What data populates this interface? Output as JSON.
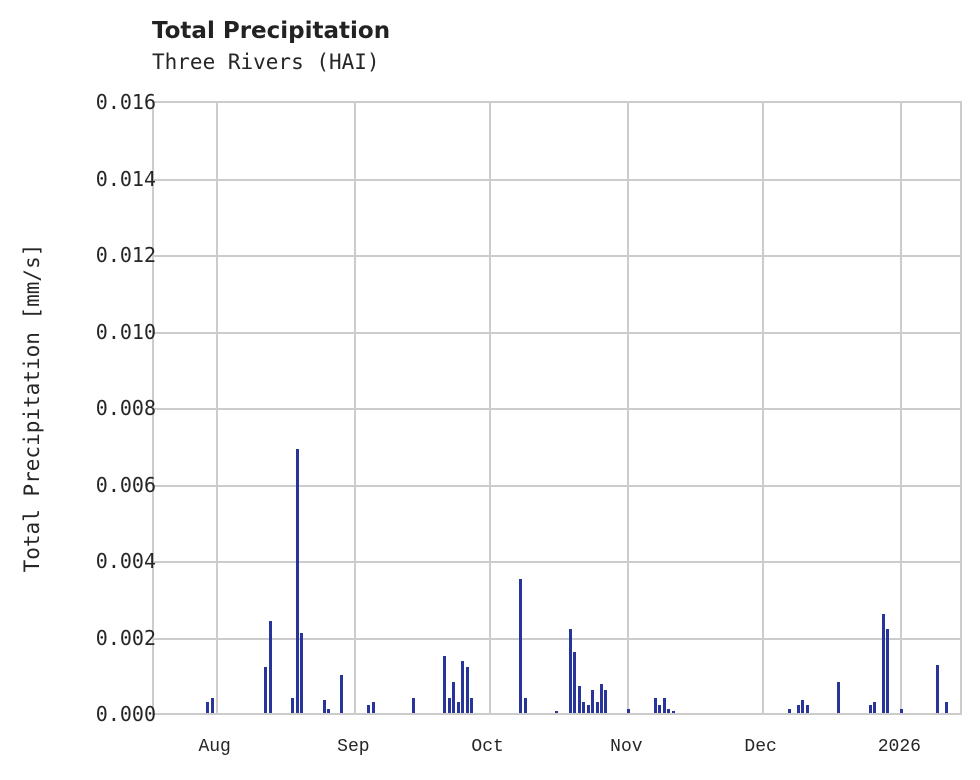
{
  "chart_data": {
    "type": "bar",
    "title": "Total Precipitation",
    "subtitle": "Three Rivers (HAI)",
    "xlabel": "",
    "ylabel": "Total Precipitation [mm/s]",
    "ylim": [
      0,
      0.016
    ],
    "xlim": [
      "2025-07-18",
      "2026-01-15"
    ],
    "grid": true,
    "legend": null,
    "color": "#27359a",
    "yticks": [
      "0.000",
      "0.002",
      "0.004",
      "0.006",
      "0.008",
      "0.010",
      "0.012",
      "0.014",
      "0.016"
    ],
    "xticks": [
      {
        "label": "Aug",
        "date": "2025-08-01"
      },
      {
        "label": "Sep",
        "date": "2025-09-01"
      },
      {
        "label": "Oct",
        "date": "2025-10-01"
      },
      {
        "label": "Nov",
        "date": "2025-11-01"
      },
      {
        "label": "Dec",
        "date": "2025-12-01"
      },
      {
        "label": "2026",
        "date": "2026-01-01"
      }
    ],
    "points": [
      {
        "x": "2025-07-30",
        "y": 0.0003
      },
      {
        "x": "2025-07-31",
        "y": 0.0004
      },
      {
        "x": "2025-08-12",
        "y": 0.0012
      },
      {
        "x": "2025-08-13",
        "y": 0.0024
      },
      {
        "x": "2025-08-18",
        "y": 0.0004
      },
      {
        "x": "2025-08-19",
        "y": 0.0069
      },
      {
        "x": "2025-08-20",
        "y": 0.0021
      },
      {
        "x": "2025-08-25",
        "y": 0.00035
      },
      {
        "x": "2025-08-26",
        "y": 0.0001
      },
      {
        "x": "2025-08-29",
        "y": 0.001
      },
      {
        "x": "2025-09-04",
        "y": 0.0002
      },
      {
        "x": "2025-09-05",
        "y": 0.00028
      },
      {
        "x": "2025-09-14",
        "y": 0.0004
      },
      {
        "x": "2025-09-21",
        "y": 0.0015
      },
      {
        "x": "2025-09-22",
        "y": 0.0004
      },
      {
        "x": "2025-09-23",
        "y": 0.0008
      },
      {
        "x": "2025-09-24",
        "y": 0.0003
      },
      {
        "x": "2025-09-25",
        "y": 0.00135
      },
      {
        "x": "2025-09-26",
        "y": 0.0012
      },
      {
        "x": "2025-09-27",
        "y": 0.0004
      },
      {
        "x": "2025-10-08",
        "y": 0.0035
      },
      {
        "x": "2025-10-09",
        "y": 0.0004
      },
      {
        "x": "2025-10-16",
        "y": 5e-05
      },
      {
        "x": "2025-10-19",
        "y": 0.0022
      },
      {
        "x": "2025-10-20",
        "y": 0.0016
      },
      {
        "x": "2025-10-21",
        "y": 0.0007
      },
      {
        "x": "2025-10-22",
        "y": 0.0003
      },
      {
        "x": "2025-10-23",
        "y": 0.0002
      },
      {
        "x": "2025-10-24",
        "y": 0.0006
      },
      {
        "x": "2025-10-25",
        "y": 0.0003
      },
      {
        "x": "2025-10-26",
        "y": 0.00075
      },
      {
        "x": "2025-10-27",
        "y": 0.0006
      },
      {
        "x": "2025-11-01",
        "y": 0.0001
      },
      {
        "x": "2025-11-07",
        "y": 0.0004
      },
      {
        "x": "2025-11-08",
        "y": 0.0002
      },
      {
        "x": "2025-11-09",
        "y": 0.0004
      },
      {
        "x": "2025-11-10",
        "y": 0.0001
      },
      {
        "x": "2025-11-11",
        "y": 5e-05
      },
      {
        "x": "2025-12-07",
        "y": 0.0001
      },
      {
        "x": "2025-12-09",
        "y": 0.0002
      },
      {
        "x": "2025-12-10",
        "y": 0.00035
      },
      {
        "x": "2025-12-11",
        "y": 0.0002
      },
      {
        "x": "2025-12-18",
        "y": 0.0008
      },
      {
        "x": "2025-12-25",
        "y": 0.0002
      },
      {
        "x": "2025-12-26",
        "y": 0.00028
      },
      {
        "x": "2025-12-28",
        "y": 0.0026
      },
      {
        "x": "2025-12-29",
        "y": 0.0022
      },
      {
        "x": "2026-01-01",
        "y": 0.0001
      },
      {
        "x": "2026-01-09",
        "y": 0.00125
      },
      {
        "x": "2026-01-11",
        "y": 0.00028
      }
    ]
  }
}
